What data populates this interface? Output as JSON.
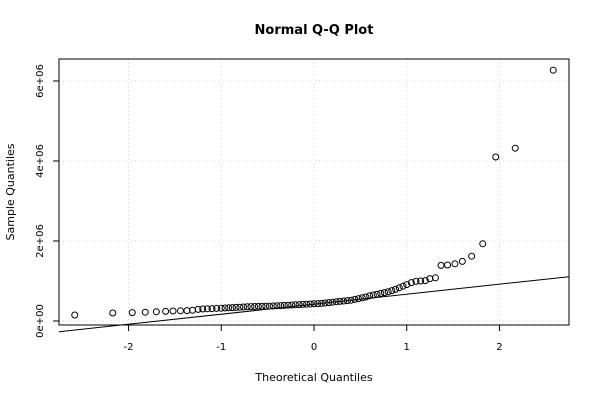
{
  "chart_data": {
    "type": "scatter",
    "title": "Normal Q-Q Plot",
    "xlabel": "Theoretical Quantiles",
    "ylabel": "Sample Quantiles",
    "xlim": [
      -2.75,
      2.75
    ],
    "ylim": [
      -100000,
      6550000
    ],
    "x_ticks": [
      -2,
      -1,
      0,
      1,
      2
    ],
    "x_tick_labels": [
      "-2",
      "-1",
      "0",
      "1",
      "2"
    ],
    "y_ticks": [
      0,
      2000000,
      4000000,
      6000000
    ],
    "y_tick_labels": [
      "0e+00",
      "2e+06",
      "4e+06",
      "6e+06"
    ],
    "grid": true,
    "reference_line": {
      "slope": 250000,
      "intercept": 420000
    },
    "marker": "open-circle",
    "points": {
      "x": [
        -2.58,
        -2.17,
        -1.96,
        -1.82,
        -1.7,
        -1.6,
        -1.52,
        -1.44,
        -1.37,
        -1.31,
        -1.25,
        -1.2,
        -1.15,
        -1.1,
        -1.05,
        -1.0,
        -0.96,
        -0.92,
        -0.88,
        -0.84,
        -0.8,
        -0.76,
        -0.72,
        -0.68,
        -0.64,
        -0.6,
        -0.56,
        -0.52,
        -0.48,
        -0.44,
        -0.4,
        -0.36,
        -0.32,
        -0.28,
        -0.24,
        -0.2,
        -0.16,
        -0.12,
        -0.08,
        -0.04,
        0.0,
        0.04,
        0.08,
        0.12,
        0.16,
        0.2,
        0.24,
        0.28,
        0.32,
        0.36,
        0.4,
        0.44,
        0.48,
        0.52,
        0.56,
        0.6,
        0.64,
        0.68,
        0.72,
        0.76,
        0.8,
        0.84,
        0.88,
        0.92,
        0.96,
        1.0,
        1.05,
        1.1,
        1.15,
        1.2,
        1.25,
        1.31,
        1.37,
        1.44,
        1.52,
        1.6,
        1.7,
        1.82,
        1.96,
        2.17,
        2.58
      ],
      "y": [
        150000,
        200000,
        210000,
        220000,
        230000,
        240000,
        250000,
        255000,
        260000,
        270000,
        290000,
        300000,
        305000,
        310000,
        315000,
        320000,
        325000,
        330000,
        335000,
        340000,
        345000,
        350000,
        355000,
        360000,
        362000,
        365000,
        368000,
        370000,
        373000,
        376000,
        380000,
        385000,
        390000,
        395000,
        400000,
        405000,
        410000,
        415000,
        420000,
        425000,
        430000,
        435000,
        440000,
        450000,
        460000,
        470000,
        480000,
        490000,
        500000,
        510000,
        520000,
        540000,
        560000,
        580000,
        600000,
        630000,
        650000,
        670000,
        690000,
        710000,
        730000,
        760000,
        790000,
        830000,
        870000,
        910000,
        960000,
        990000,
        1000000,
        1010000,
        1060000,
        1080000,
        1390000,
        1400000,
        1430000,
        1490000,
        1620000,
        1930000,
        4100000,
        4320000,
        6270000
      ]
    }
  }
}
